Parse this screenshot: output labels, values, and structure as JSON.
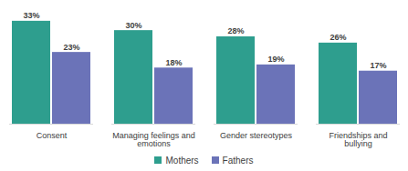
{
  "chart_data": {
    "type": "bar",
    "categories": [
      "Consent",
      "Managing feelings and emotions",
      "Gender stereotypes",
      "Friendships and bullying"
    ],
    "series": [
      {
        "name": "Mothers",
        "color": "#2e9e8e",
        "values": [
          33,
          30,
          28,
          26
        ],
        "value_labels": [
          "33%",
          "30%",
          "28%",
          "26%"
        ]
      },
      {
        "name": "Fathers",
        "color": "#6b73b8",
        "values": [
          23,
          18,
          19,
          17
        ],
        "value_labels": [
          "23%",
          "18%",
          "19%",
          "17%"
        ]
      }
    ],
    "ylim": [
      0,
      35
    ],
    "data_labels": true,
    "tick_labels": "x",
    "legend": "bottom"
  }
}
